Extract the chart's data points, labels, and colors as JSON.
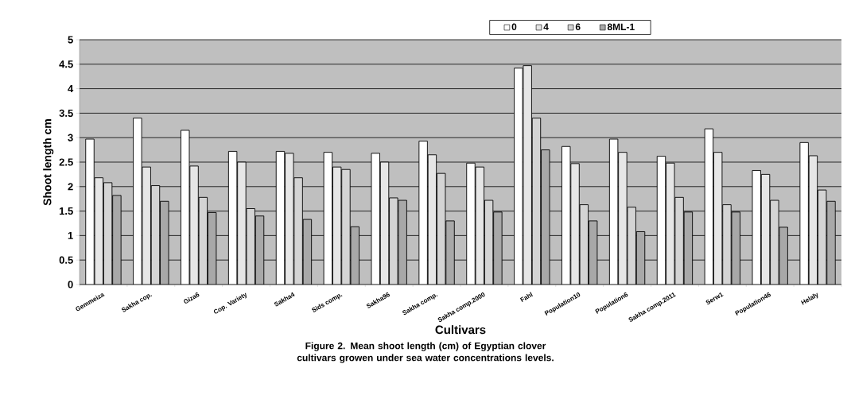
{
  "chart_data": {
    "type": "bar",
    "xlabel": "Cultivars",
    "ylabel": "Shoot length cm",
    "categories": [
      "Gemmeiza",
      "Sakha cop.",
      "Giza6",
      "Cop. Variety",
      "Sakha4",
      "Sids comp.",
      "Sakha96",
      "Sakha comp.",
      "Sakha comp.2000",
      "Fahl",
      "Population10",
      "Population6",
      "Sakha comp.2011",
      "Serw1",
      "Population46",
      "Helaly"
    ],
    "series": [
      {
        "name": "0",
        "color": "#ffffff",
        "values": [
          2.97,
          3.4,
          3.15,
          2.72,
          2.72,
          2.7,
          2.68,
          2.93,
          2.48,
          4.42,
          2.82,
          2.97,
          2.62,
          3.18,
          2.33,
          2.9
        ]
      },
      {
        "name": "4",
        "color": "#e6e6e6",
        "values": [
          2.18,
          2.4,
          2.42,
          2.5,
          2.68,
          2.4,
          2.5,
          2.65,
          2.4,
          4.47,
          2.47,
          2.7,
          2.48,
          2.7,
          2.25,
          2.63
        ]
      },
      {
        "name": "6",
        "color": "#d4d4d4",
        "values": [
          2.08,
          2.02,
          1.78,
          1.55,
          2.18,
          2.35,
          1.77,
          2.27,
          1.72,
          3.4,
          1.63,
          1.58,
          1.78,
          1.63,
          1.72,
          1.93
        ]
      },
      {
        "name": "8ML-1",
        "color": "#a8a8a8",
        "values": [
          1.82,
          1.7,
          1.47,
          1.4,
          1.33,
          1.18,
          1.72,
          1.3,
          1.48,
          2.75,
          1.3,
          1.08,
          1.48,
          1.48,
          1.17,
          1.7
        ]
      }
    ],
    "ylim": [
      0,
      5
    ],
    "yticks": [
      0,
      0.5,
      1,
      1.5,
      2,
      2.5,
      3,
      3.5,
      4,
      4.5,
      5
    ],
    "grid": "y",
    "legend": "top right",
    "annotations": [
      "Figure 2. Mean shoot length (cm) of Egyptian clover cultivars growen under sea water concentrations levels."
    ]
  }
}
